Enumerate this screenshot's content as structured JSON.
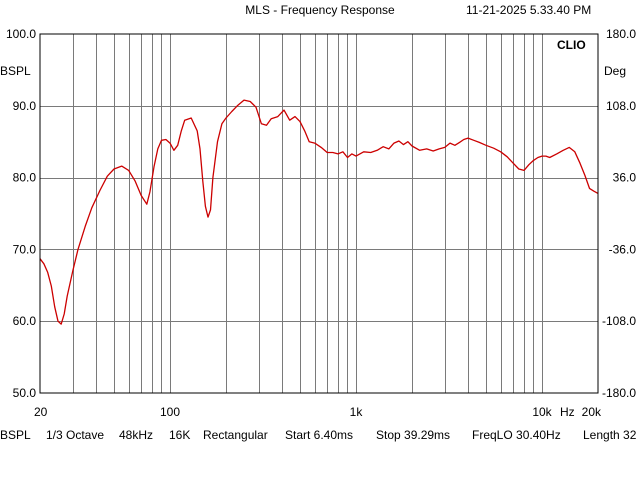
{
  "header": {
    "title": "MLS - Frequency Response",
    "timestamp": "11-21-2025 5.33.40 PM"
  },
  "brand": "CLIO",
  "left_axis": {
    "unit": "BSPL"
  },
  "right_axis": {
    "unit": "Deg"
  },
  "footer": {
    "unit": "BSPL",
    "smoothing": "1/3 Octave",
    "sample_rate": "48kHz",
    "size": "16K",
    "window": "Rectangular",
    "start": "Start 6.40ms",
    "stop": "Stop 39.29ms",
    "freqlo": "FreqLO 30.40Hz",
    "length": "Length 32"
  },
  "chart_data": {
    "type": "line",
    "x_scale": "log",
    "grid": true,
    "xlim": [
      20,
      20000
    ],
    "ylim": [
      50,
      100
    ],
    "y2lim": [
      -180,
      180
    ],
    "x_tick_labels": [
      {
        "value": 20,
        "label": "20"
      },
      {
        "value": 100,
        "label": "100"
      },
      {
        "value": 1000,
        "label": "1k"
      },
      {
        "value": 10000,
        "label": "10k"
      },
      {
        "value": 20000,
        "label": "20k"
      }
    ],
    "x_unit_label": "Hz",
    "y_tick_labels": [
      "50.0",
      "60.0",
      "70.0",
      "80.0",
      "90.0",
      "100.0"
    ],
    "y2_tick_labels": [
      "-180.0",
      "-108.0",
      "-36.0",
      "36.0",
      "108.0",
      "180.0"
    ],
    "series": [
      {
        "color": "#cc0000",
        "x": [
          20,
          21,
          22,
          23,
          24,
          25,
          26,
          27,
          28,
          30,
          32,
          35,
          38,
          42,
          46,
          50,
          55,
          60,
          65,
          70,
          75,
          78,
          82,
          86,
          90,
          95,
          100,
          105,
          110,
          115,
          120,
          130,
          140,
          145,
          150,
          155,
          160,
          165,
          170,
          180,
          190,
          200,
          215,
          230,
          250,
          270,
          290,
          310,
          330,
          350,
          380,
          410,
          440,
          470,
          500,
          530,
          560,
          600,
          650,
          700,
          750,
          800,
          850,
          900,
          950,
          1000,
          1100,
          1200,
          1300,
          1400,
          1500,
          1600,
          1700,
          1800,
          1900,
          2000,
          2200,
          2400,
          2600,
          2800,
          3000,
          3200,
          3400,
          3600,
          3800,
          4000,
          4300,
          4600,
          5000,
          5500,
          6000,
          6500,
          7000,
          7500,
          8000,
          8500,
          9000,
          9500,
          10000,
          10500,
          11000,
          12000,
          13000,
          14000,
          15000,
          16000,
          17000,
          18000,
          19000,
          20000
        ],
        "y": [
          68.7,
          68.0,
          66.8,
          64.9,
          62.0,
          60.0,
          59.6,
          61.0,
          63.5,
          67.0,
          70.0,
          73.2,
          75.8,
          78.2,
          80.2,
          81.2,
          81.6,
          81.0,
          79.5,
          77.5,
          76.3,
          78.0,
          81.5,
          84.0,
          85.2,
          85.3,
          84.8,
          83.8,
          84.5,
          86.5,
          88.0,
          88.3,
          86.5,
          84.0,
          79.5,
          76.0,
          74.5,
          75.5,
          80.0,
          85.0,
          87.5,
          88.3,
          89.2,
          90.0,
          90.8,
          90.6,
          89.8,
          87.5,
          87.3,
          88.2,
          88.5,
          89.4,
          88.0,
          88.5,
          87.8,
          86.5,
          85.0,
          84.8,
          84.2,
          83.5,
          83.5,
          83.3,
          83.6,
          82.8,
          83.3,
          83.0,
          83.6,
          83.5,
          83.8,
          84.3,
          84.0,
          84.8,
          85.1,
          84.6,
          85.0,
          84.4,
          83.8,
          84.0,
          83.7,
          84.0,
          84.2,
          84.8,
          84.5,
          84.9,
          85.3,
          85.5,
          85.2,
          84.9,
          84.5,
          84.1,
          83.6,
          82.9,
          82.0,
          81.2,
          81.0,
          81.8,
          82.4,
          82.8,
          83.0,
          83.0,
          82.8,
          83.3,
          83.8,
          84.2,
          83.6,
          82.0,
          80.3,
          78.5,
          78.1,
          77.8
        ]
      }
    ]
  }
}
